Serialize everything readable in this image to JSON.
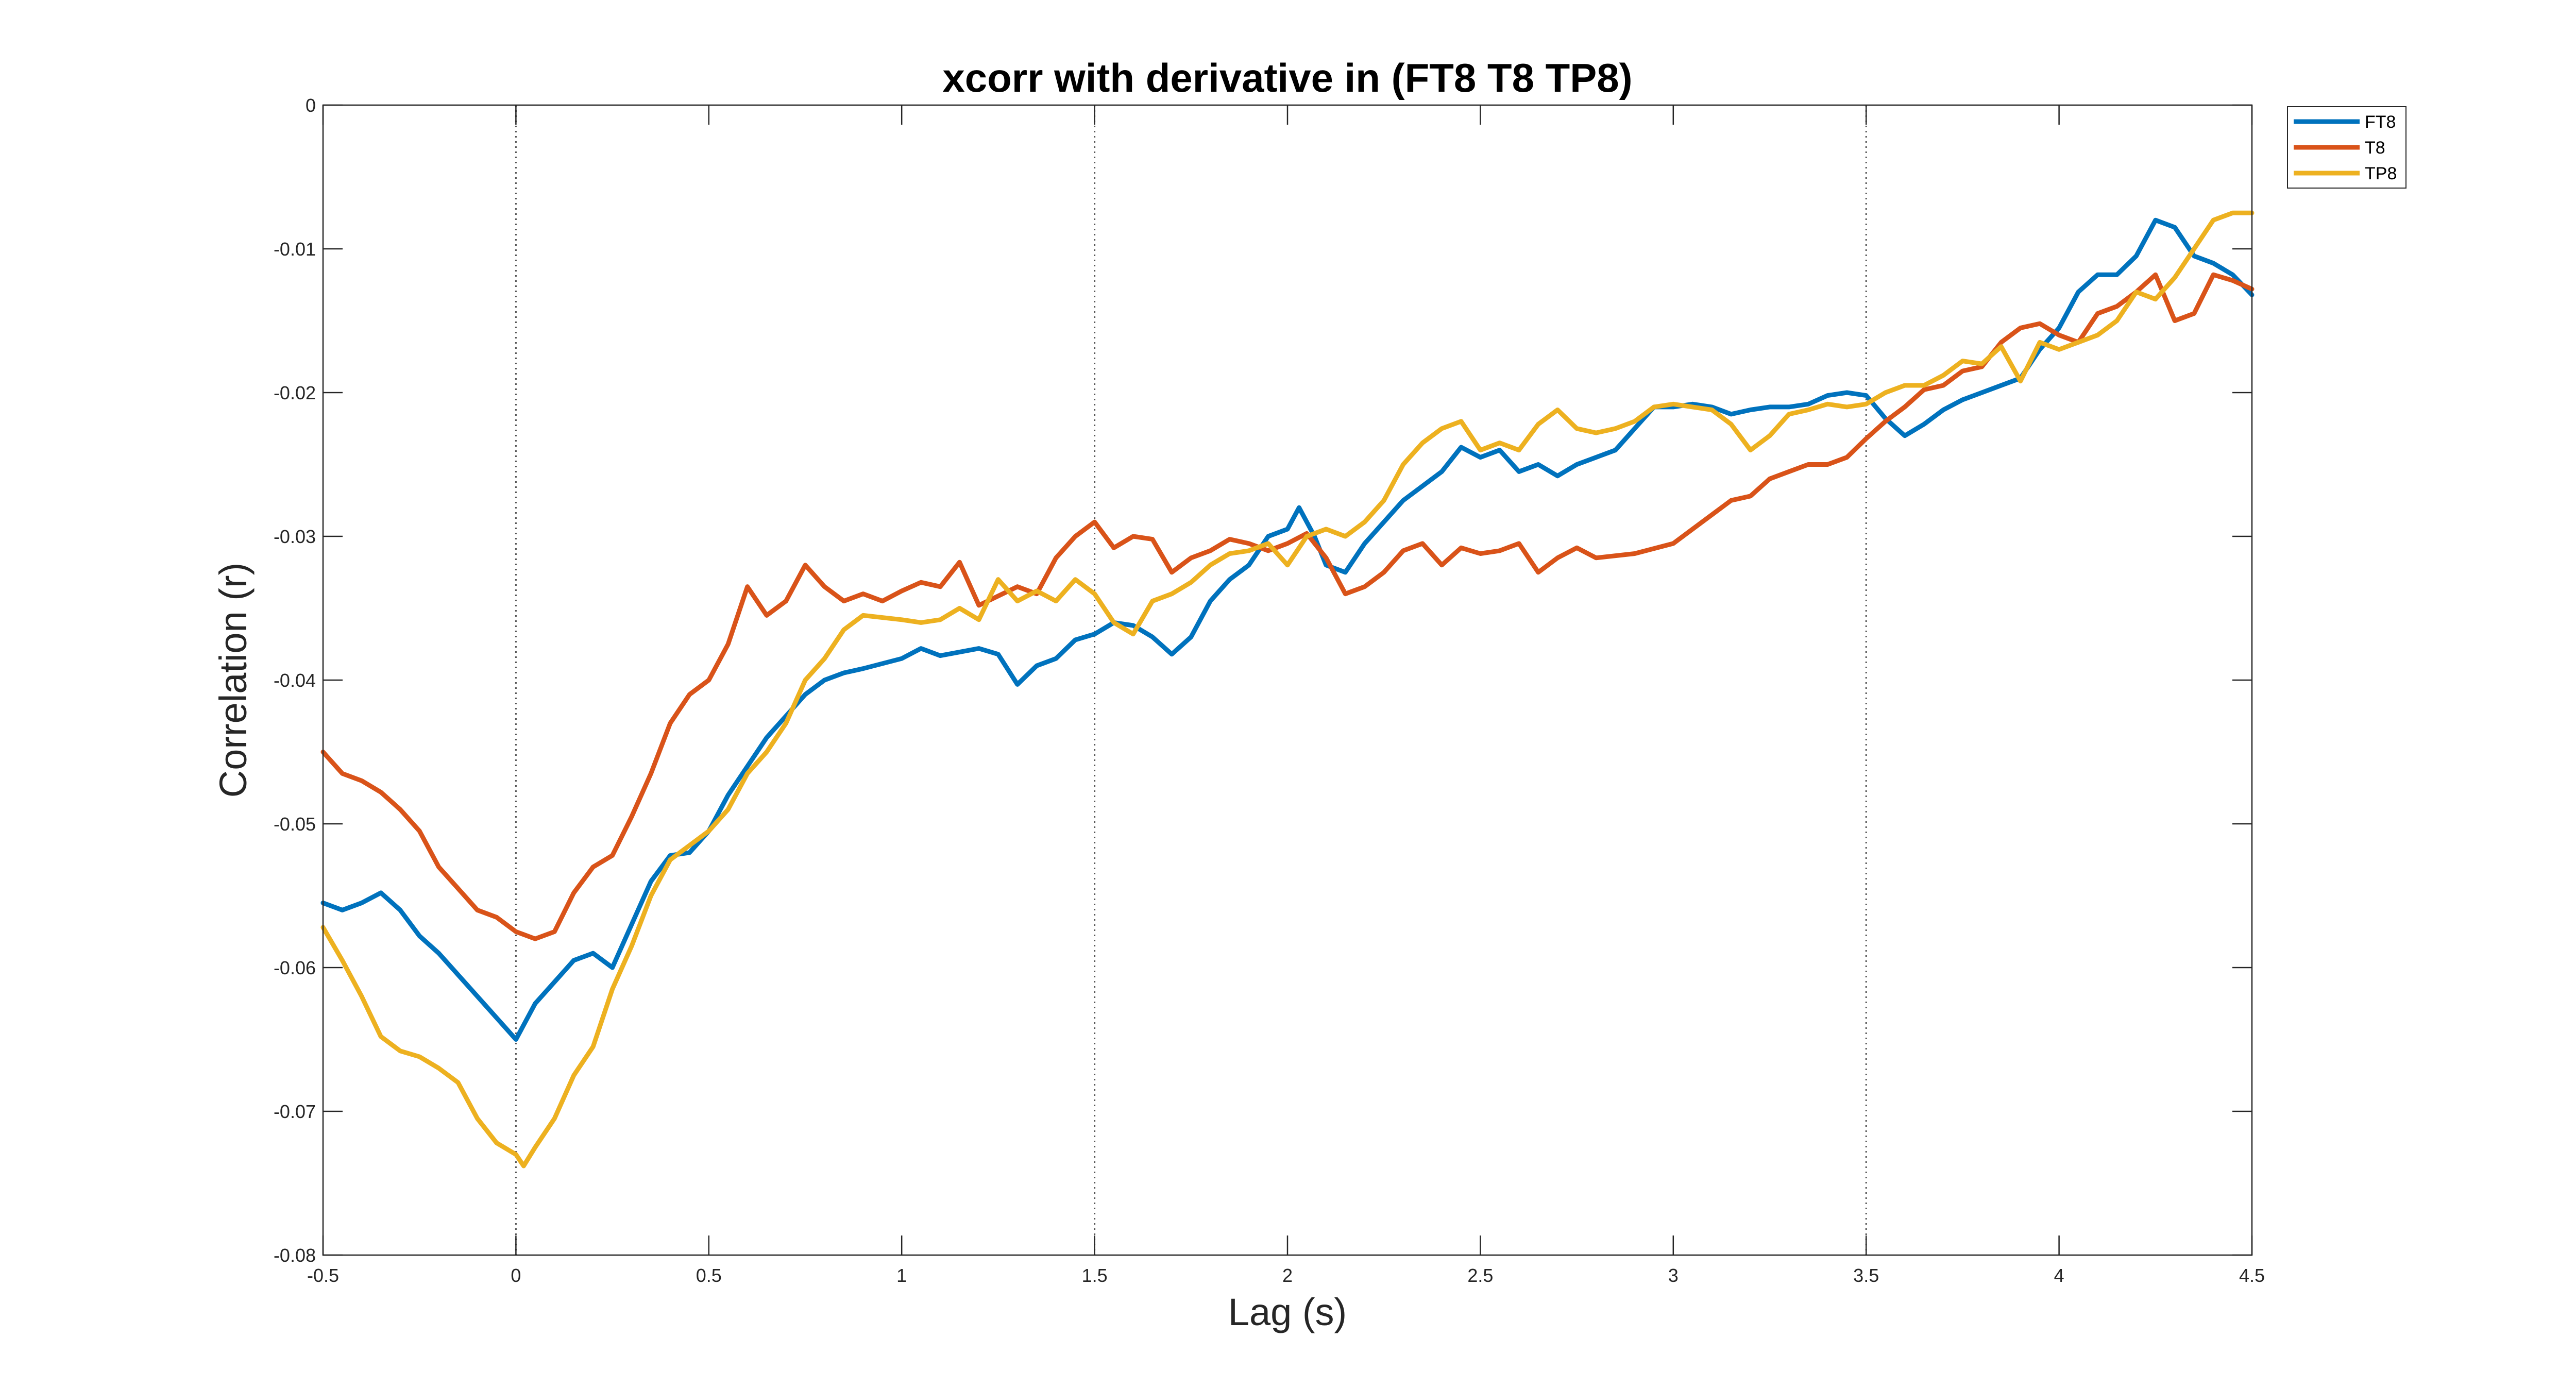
{
  "chart_data": {
    "type": "line",
    "title": "xcorr with derivative in (FT8 T8 TP8)",
    "xlabel": "Lag (s)",
    "ylabel": "Correlation (r)",
    "xlim": [
      -0.5,
      4.5
    ],
    "ylim": [
      -0.08,
      0
    ],
    "xticks": [
      -0.5,
      0,
      0.5,
      1,
      1.5,
      2,
      2.5,
      3,
      3.5,
      4,
      4.5
    ],
    "xtick_labels": [
      "-0.5",
      "0",
      "0.5",
      "1",
      "1.5",
      "2",
      "2.5",
      "3",
      "3.5",
      "4",
      "4.5"
    ],
    "yticks": [
      0,
      -0.01,
      -0.02,
      -0.03,
      -0.04,
      -0.05,
      -0.06,
      -0.07,
      -0.08
    ],
    "ytick_labels": [
      "0",
      "-0.01",
      "-0.02",
      "-0.03",
      "-0.04",
      "-0.05",
      "-0.06",
      "-0.07",
      "-0.08"
    ],
    "vlines": [
      0,
      1.5,
      3.5
    ],
    "legend_position": "top-right, outside",
    "series": [
      {
        "name": "FT8",
        "color": "#0072BD",
        "points": [
          [
            -0.5,
            -0.0555
          ],
          [
            -0.45,
            -0.056
          ],
          [
            -0.4,
            -0.0555
          ],
          [
            -0.35,
            -0.0548
          ],
          [
            -0.3,
            -0.056
          ],
          [
            -0.25,
            -0.0578
          ],
          [
            -0.2,
            -0.059
          ],
          [
            -0.15,
            -0.0605
          ],
          [
            -0.1,
            -0.062
          ],
          [
            -0.05,
            -0.0635
          ],
          [
            0,
            -0.065
          ],
          [
            0.05,
            -0.0625
          ],
          [
            0.1,
            -0.061
          ],
          [
            0.15,
            -0.0595
          ],
          [
            0.2,
            -0.059
          ],
          [
            0.25,
            -0.06
          ],
          [
            0.3,
            -0.057
          ],
          [
            0.35,
            -0.054
          ],
          [
            0.4,
            -0.0522
          ],
          [
            0.45,
            -0.052
          ],
          [
            0.5,
            -0.0505
          ],
          [
            0.55,
            -0.048
          ],
          [
            0.6,
            -0.046
          ],
          [
            0.65,
            -0.044
          ],
          [
            0.7,
            -0.0425
          ],
          [
            0.75,
            -0.041
          ],
          [
            0.8,
            -0.04
          ],
          [
            0.85,
            -0.0395
          ],
          [
            0.9,
            -0.0392
          ],
          [
            1.0,
            -0.0385
          ],
          [
            1.05,
            -0.0378
          ],
          [
            1.1,
            -0.0383
          ],
          [
            1.2,
            -0.0378
          ],
          [
            1.25,
            -0.0382
          ],
          [
            1.3,
            -0.0403
          ],
          [
            1.35,
            -0.039
          ],
          [
            1.4,
            -0.0385
          ],
          [
            1.45,
            -0.0372
          ],
          [
            1.5,
            -0.0368
          ],
          [
            1.55,
            -0.036
          ],
          [
            1.6,
            -0.0362
          ],
          [
            1.65,
            -0.037
          ],
          [
            1.7,
            -0.0382
          ],
          [
            1.75,
            -0.037
          ],
          [
            1.8,
            -0.0345
          ],
          [
            1.85,
            -0.033
          ],
          [
            1.9,
            -0.032
          ],
          [
            1.95,
            -0.03
          ],
          [
            2.0,
            -0.0295
          ],
          [
            2.03,
            -0.028
          ],
          [
            2.07,
            -0.03
          ],
          [
            2.1,
            -0.032
          ],
          [
            2.15,
            -0.0325
          ],
          [
            2.2,
            -0.0305
          ],
          [
            2.25,
            -0.029
          ],
          [
            2.3,
            -0.0275
          ],
          [
            2.35,
            -0.0265
          ],
          [
            2.4,
            -0.0255
          ],
          [
            2.45,
            -0.0238
          ],
          [
            2.5,
            -0.0245
          ],
          [
            2.55,
            -0.024
          ],
          [
            2.6,
            -0.0255
          ],
          [
            2.65,
            -0.025
          ],
          [
            2.7,
            -0.0258
          ],
          [
            2.75,
            -0.025
          ],
          [
            2.8,
            -0.0245
          ],
          [
            2.85,
            -0.024
          ],
          [
            2.9,
            -0.0225
          ],
          [
            2.95,
            -0.021
          ],
          [
            3.0,
            -0.021
          ],
          [
            3.05,
            -0.0208
          ],
          [
            3.1,
            -0.021
          ],
          [
            3.15,
            -0.0215
          ],
          [
            3.2,
            -0.0212
          ],
          [
            3.25,
            -0.021
          ],
          [
            3.3,
            -0.021
          ],
          [
            3.35,
            -0.0208
          ],
          [
            3.4,
            -0.0202
          ],
          [
            3.45,
            -0.02
          ],
          [
            3.5,
            -0.0202
          ],
          [
            3.55,
            -0.0218
          ],
          [
            3.6,
            -0.023
          ],
          [
            3.65,
            -0.0222
          ],
          [
            3.7,
            -0.0212
          ],
          [
            3.75,
            -0.0205
          ],
          [
            3.8,
            -0.02
          ],
          [
            3.85,
            -0.0195
          ],
          [
            3.9,
            -0.019
          ],
          [
            3.95,
            -0.017
          ],
          [
            4.0,
            -0.0155
          ],
          [
            4.05,
            -0.013
          ],
          [
            4.1,
            -0.0118
          ],
          [
            4.15,
            -0.0118
          ],
          [
            4.2,
            -0.0105
          ],
          [
            4.25,
            -0.008
          ],
          [
            4.3,
            -0.0085
          ],
          [
            4.35,
            -0.0105
          ],
          [
            4.4,
            -0.011
          ],
          [
            4.45,
            -0.0118
          ],
          [
            4.5,
            -0.0132
          ]
        ]
      },
      {
        "name": "T8",
        "color": "#D95319",
        "points": [
          [
            -0.5,
            -0.045
          ],
          [
            -0.45,
            -0.0465
          ],
          [
            -0.4,
            -0.047
          ],
          [
            -0.35,
            -0.0478
          ],
          [
            -0.3,
            -0.049
          ],
          [
            -0.25,
            -0.0505
          ],
          [
            -0.2,
            -0.053
          ],
          [
            -0.15,
            -0.0545
          ],
          [
            -0.1,
            -0.056
          ],
          [
            -0.05,
            -0.0565
          ],
          [
            0,
            -0.0575
          ],
          [
            0.05,
            -0.058
          ],
          [
            0.1,
            -0.0575
          ],
          [
            0.15,
            -0.0548
          ],
          [
            0.2,
            -0.053
          ],
          [
            0.25,
            -0.0522
          ],
          [
            0.3,
            -0.0495
          ],
          [
            0.35,
            -0.0465
          ],
          [
            0.4,
            -0.043
          ],
          [
            0.45,
            -0.041
          ],
          [
            0.5,
            -0.04
          ],
          [
            0.55,
            -0.0375
          ],
          [
            0.6,
            -0.0335
          ],
          [
            0.65,
            -0.0355
          ],
          [
            0.7,
            -0.0345
          ],
          [
            0.75,
            -0.032
          ],
          [
            0.8,
            -0.0335
          ],
          [
            0.85,
            -0.0345
          ],
          [
            0.9,
            -0.034
          ],
          [
            0.95,
            -0.0345
          ],
          [
            1.0,
            -0.0338
          ],
          [
            1.05,
            -0.0332
          ],
          [
            1.1,
            -0.0335
          ],
          [
            1.15,
            -0.0318
          ],
          [
            1.2,
            -0.0348
          ],
          [
            1.3,
            -0.0335
          ],
          [
            1.35,
            -0.034
          ],
          [
            1.4,
            -0.0315
          ],
          [
            1.45,
            -0.03
          ],
          [
            1.5,
            -0.029
          ],
          [
            1.55,
            -0.0308
          ],
          [
            1.6,
            -0.03
          ],
          [
            1.65,
            -0.0302
          ],
          [
            1.7,
            -0.0325
          ],
          [
            1.75,
            -0.0315
          ],
          [
            1.8,
            -0.031
          ],
          [
            1.85,
            -0.0302
          ],
          [
            1.9,
            -0.0305
          ],
          [
            1.95,
            -0.031
          ],
          [
            2.0,
            -0.0305
          ],
          [
            2.05,
            -0.0298
          ],
          [
            2.1,
            -0.0315
          ],
          [
            2.15,
            -0.034
          ],
          [
            2.2,
            -0.0335
          ],
          [
            2.25,
            -0.0325
          ],
          [
            2.3,
            -0.031
          ],
          [
            2.35,
            -0.0305
          ],
          [
            2.4,
            -0.032
          ],
          [
            2.45,
            -0.0308
          ],
          [
            2.5,
            -0.0312
          ],
          [
            2.55,
            -0.031
          ],
          [
            2.6,
            -0.0305
          ],
          [
            2.65,
            -0.0325
          ],
          [
            2.7,
            -0.0315
          ],
          [
            2.75,
            -0.0308
          ],
          [
            2.8,
            -0.0315
          ],
          [
            2.9,
            -0.0312
          ],
          [
            3.0,
            -0.0305
          ],
          [
            3.05,
            -0.0295
          ],
          [
            3.1,
            -0.0285
          ],
          [
            3.15,
            -0.0275
          ],
          [
            3.2,
            -0.0272
          ],
          [
            3.25,
            -0.026
          ],
          [
            3.3,
            -0.0255
          ],
          [
            3.35,
            -0.025
          ],
          [
            3.4,
            -0.025
          ],
          [
            3.45,
            -0.0245
          ],
          [
            3.5,
            -0.0232
          ],
          [
            3.55,
            -0.022
          ],
          [
            3.6,
            -0.021
          ],
          [
            3.65,
            -0.0198
          ],
          [
            3.7,
            -0.0195
          ],
          [
            3.75,
            -0.0185
          ],
          [
            3.8,
            -0.0182
          ],
          [
            3.85,
            -0.0165
          ],
          [
            3.9,
            -0.0155
          ],
          [
            3.95,
            -0.0152
          ],
          [
            4.0,
            -0.016
          ],
          [
            4.05,
            -0.0165
          ],
          [
            4.1,
            -0.0145
          ],
          [
            4.15,
            -0.014
          ],
          [
            4.2,
            -0.013
          ],
          [
            4.25,
            -0.0118
          ],
          [
            4.3,
            -0.015
          ],
          [
            4.35,
            -0.0145
          ],
          [
            4.4,
            -0.0118
          ],
          [
            4.45,
            -0.0122
          ],
          [
            4.5,
            -0.0128
          ]
        ]
      },
      {
        "name": "TP8",
        "color": "#EDB120",
        "points": [
          [
            -0.5,
            -0.0572
          ],
          [
            -0.45,
            -0.0595
          ],
          [
            -0.4,
            -0.062
          ],
          [
            -0.35,
            -0.0648
          ],
          [
            -0.3,
            -0.0658
          ],
          [
            -0.25,
            -0.0662
          ],
          [
            -0.2,
            -0.067
          ],
          [
            -0.15,
            -0.068
          ],
          [
            -0.1,
            -0.0705
          ],
          [
            -0.05,
            -0.0722
          ],
          [
            0,
            -0.073
          ],
          [
            0.02,
            -0.0738
          ],
          [
            0.05,
            -0.0725
          ],
          [
            0.1,
            -0.0705
          ],
          [
            0.15,
            -0.0675
          ],
          [
            0.2,
            -0.0655
          ],
          [
            0.25,
            -0.0615
          ],
          [
            0.3,
            -0.0585
          ],
          [
            0.35,
            -0.055
          ],
          [
            0.4,
            -0.0525
          ],
          [
            0.45,
            -0.0515
          ],
          [
            0.5,
            -0.0505
          ],
          [
            0.55,
            -0.049
          ],
          [
            0.6,
            -0.0465
          ],
          [
            0.65,
            -0.045
          ],
          [
            0.7,
            -0.043
          ],
          [
            0.75,
            -0.04
          ],
          [
            0.8,
            -0.0385
          ],
          [
            0.85,
            -0.0365
          ],
          [
            0.9,
            -0.0355
          ],
          [
            1.0,
            -0.0358
          ],
          [
            1.05,
            -0.036
          ],
          [
            1.1,
            -0.0358
          ],
          [
            1.15,
            -0.035
          ],
          [
            1.2,
            -0.0358
          ],
          [
            1.25,
            -0.033
          ],
          [
            1.3,
            -0.0345
          ],
          [
            1.35,
            -0.0338
          ],
          [
            1.4,
            -0.0345
          ],
          [
            1.45,
            -0.033
          ],
          [
            1.5,
            -0.034
          ],
          [
            1.55,
            -0.036
          ],
          [
            1.6,
            -0.0368
          ],
          [
            1.65,
            -0.0345
          ],
          [
            1.7,
            -0.034
          ],
          [
            1.75,
            -0.0332
          ],
          [
            1.8,
            -0.032
          ],
          [
            1.85,
            -0.0312
          ],
          [
            1.9,
            -0.031
          ],
          [
            1.95,
            -0.0305
          ],
          [
            2.0,
            -0.032
          ],
          [
            2.05,
            -0.03
          ],
          [
            2.1,
            -0.0295
          ],
          [
            2.15,
            -0.03
          ],
          [
            2.2,
            -0.029
          ],
          [
            2.25,
            -0.0275
          ],
          [
            2.3,
            -0.025
          ],
          [
            2.35,
            -0.0235
          ],
          [
            2.4,
            -0.0225
          ],
          [
            2.45,
            -0.022
          ],
          [
            2.5,
            -0.024
          ],
          [
            2.55,
            -0.0235
          ],
          [
            2.6,
            -0.024
          ],
          [
            2.65,
            -0.0222
          ],
          [
            2.7,
            -0.0212
          ],
          [
            2.75,
            -0.0225
          ],
          [
            2.8,
            -0.0228
          ],
          [
            2.85,
            -0.0225
          ],
          [
            2.9,
            -0.022
          ],
          [
            2.95,
            -0.021
          ],
          [
            3.0,
            -0.0208
          ],
          [
            3.05,
            -0.021
          ],
          [
            3.1,
            -0.0212
          ],
          [
            3.15,
            -0.0222
          ],
          [
            3.2,
            -0.024
          ],
          [
            3.25,
            -0.023
          ],
          [
            3.3,
            -0.0215
          ],
          [
            3.35,
            -0.0212
          ],
          [
            3.4,
            -0.0208
          ],
          [
            3.45,
            -0.021
          ],
          [
            3.5,
            -0.0208
          ],
          [
            3.55,
            -0.02
          ],
          [
            3.6,
            -0.0195
          ],
          [
            3.65,
            -0.0195
          ],
          [
            3.7,
            -0.0188
          ],
          [
            3.75,
            -0.0178
          ],
          [
            3.8,
            -0.018
          ],
          [
            3.85,
            -0.0168
          ],
          [
            3.9,
            -0.0192
          ],
          [
            3.95,
            -0.0165
          ],
          [
            4.0,
            -0.017
          ],
          [
            4.05,
            -0.0165
          ],
          [
            4.1,
            -0.016
          ],
          [
            4.15,
            -0.015
          ],
          [
            4.2,
            -0.013
          ],
          [
            4.25,
            -0.0135
          ],
          [
            4.3,
            -0.012
          ],
          [
            4.35,
            -0.01
          ],
          [
            4.4,
            -0.008
          ],
          [
            4.45,
            -0.0075
          ],
          [
            4.5,
            -0.0075
          ]
        ]
      }
    ]
  }
}
